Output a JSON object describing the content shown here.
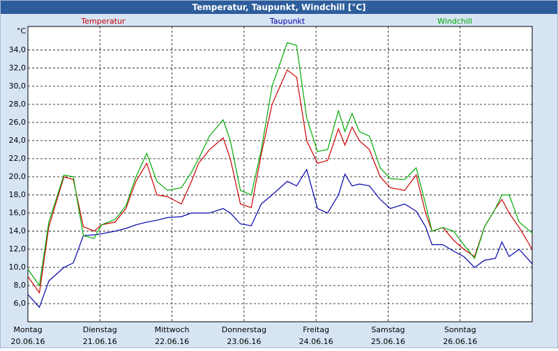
{
  "chart_data": {
    "type": "line",
    "title": "Temperatur, Taupunkt, Windchill [°C]",
    "y_label": "°C",
    "xlim": [
      0,
      7
    ],
    "ylim": [
      4,
      36.6
    ],
    "grid": true,
    "xticks": [
      {
        "value": 0,
        "label": "Montag",
        "date": "20.06.16"
      },
      {
        "value": 1,
        "label": "Dienstag",
        "date": "21.06.16"
      },
      {
        "value": 2,
        "label": "Mittwoch",
        "date": "22.06.16"
      },
      {
        "value": 3,
        "label": "Donnerstag",
        "date": "23.06.16"
      },
      {
        "value": 4,
        "label": "Freitag",
        "date": "24.06.16"
      },
      {
        "value": 5,
        "label": "Samstag",
        "date": "25.06.16"
      },
      {
        "value": 6,
        "label": "Sonntag",
        "date": "26.06.16"
      }
    ],
    "yticks": [
      {
        "value": 6,
        "label": "6,0"
      },
      {
        "value": 8,
        "label": "8,0"
      },
      {
        "value": 10,
        "label": "10,0"
      },
      {
        "value": 12,
        "label": "12,0"
      },
      {
        "value": 14,
        "label": "14,0"
      },
      {
        "value": 16,
        "label": "16,0"
      },
      {
        "value": 18,
        "label": "18,0"
      },
      {
        "value": 20,
        "label": "20,0"
      },
      {
        "value": 22,
        "label": "22,0"
      },
      {
        "value": 24,
        "label": "24,0"
      },
      {
        "value": 26,
        "label": "26,0"
      },
      {
        "value": 28,
        "label": "28,0"
      },
      {
        "value": 30,
        "label": "30,0"
      },
      {
        "value": 32,
        "label": "32,0"
      },
      {
        "value": 34,
        "label": "34,0"
      }
    ],
    "x": [
      0,
      0.16,
      0.29,
      0.5,
      0.63,
      0.77,
      0.92,
      1.02,
      1.21,
      1.36,
      1.5,
      1.65,
      1.79,
      1.94,
      2.13,
      2.27,
      2.37,
      2.52,
      2.71,
      2.81,
      2.95,
      3.1,
      3.24,
      3.39,
      3.6,
      3.73,
      3.87,
      4.02,
      4.16,
      4.31,
      4.4,
      4.5,
      4.6,
      4.74,
      4.89,
      5.03,
      5.23,
      5.39,
      5.52,
      5.61,
      5.76,
      5.91,
      6.05,
      6.2,
      6.34,
      6.49,
      6.58,
      6.68,
      6.82,
      7.0
    ],
    "series": [
      {
        "name": "Temperatur",
        "color": "#cc0000",
        "values": [
          9.0,
          7.2,
          14.5,
          20.0,
          19.7,
          14.5,
          14.0,
          14.7,
          15.0,
          16.5,
          19.5,
          21.5,
          18.0,
          17.8,
          17.0,
          19.5,
          21.5,
          23.0,
          24.3,
          22.0,
          17.0,
          16.6,
          22.5,
          28.0,
          31.8,
          31.0,
          24.0,
          21.5,
          21.8,
          25.3,
          23.5,
          25.5,
          24.0,
          23.0,
          20.0,
          18.8,
          18.5,
          20.2,
          16.0,
          14.0,
          14.4,
          13.0,
          12.0,
          11.2,
          14.5,
          16.5,
          17.5,
          16.0,
          14.4,
          12.0
        ]
      },
      {
        "name": "Taupunkt",
        "color": "#0000aa",
        "values": [
          7.0,
          5.6,
          8.5,
          10.0,
          10.5,
          13.5,
          13.6,
          13.7,
          14.0,
          14.3,
          14.7,
          15.0,
          15.2,
          15.5,
          15.6,
          16.0,
          16.0,
          16.0,
          16.5,
          16.0,
          14.8,
          14.6,
          17.0,
          18.0,
          19.5,
          19.0,
          20.8,
          16.5,
          16.0,
          18.0,
          20.3,
          19.0,
          19.2,
          19.0,
          17.5,
          16.5,
          17.0,
          16.2,
          14.5,
          12.5,
          12.5,
          11.8,
          11.2,
          10.0,
          10.8,
          11.0,
          12.8,
          11.2,
          12.0,
          10.4
        ]
      },
      {
        "name": "Windchill",
        "color": "#00aa00",
        "values": [
          9.8,
          8.0,
          15.0,
          20.2,
          20.0,
          13.5,
          13.2,
          14.7,
          15.3,
          16.8,
          20.0,
          22.6,
          19.5,
          18.5,
          18.8,
          20.5,
          22.0,
          24.5,
          26.3,
          24.0,
          18.5,
          18.0,
          23.0,
          30.0,
          34.8,
          34.5,
          26.5,
          22.8,
          23.0,
          27.3,
          25.0,
          27.0,
          25.0,
          24.5,
          21.0,
          19.8,
          19.7,
          21.0,
          17.0,
          14.0,
          14.4,
          14.0,
          12.5,
          11.0,
          14.5,
          16.5,
          18.0,
          18.0,
          15.0,
          13.8
        ]
      }
    ]
  }
}
